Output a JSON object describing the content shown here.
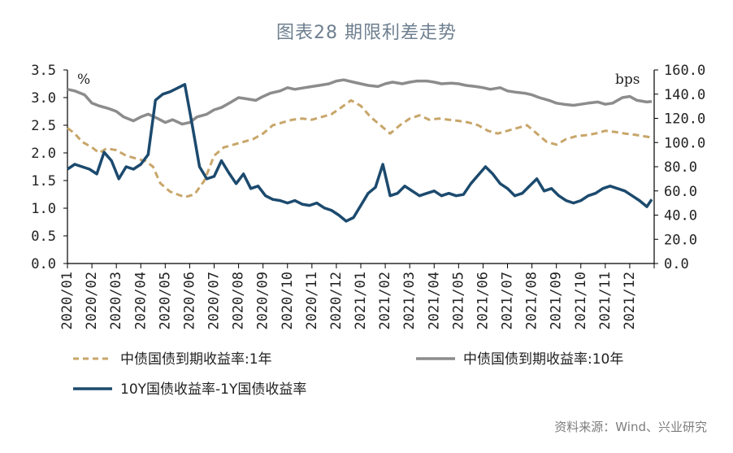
{
  "title": "图表28 期限利差走势",
  "source": "资料来源：Wind、兴业研究",
  "colors": {
    "one_year": "#c8a66a",
    "ten_year": "#8c8c8c",
    "spread": "#1c4a6e"
  },
  "chart_data": {
    "type": "line",
    "x_categories": [
      "2020/01",
      "2020/02",
      "2020/03",
      "2020/04",
      "2020/05",
      "2020/06",
      "2020/07",
      "2020/08",
      "2020/09",
      "2020/10",
      "2020/11",
      "2020/12",
      "2021/01",
      "2021/02",
      "2021/03",
      "2021/04",
      "2021/05",
      "2021/06",
      "2021/07",
      "2021/08",
      "2021/09",
      "2021/10",
      "2021/11",
      "2021/12"
    ],
    "left_axis": {
      "unit": "%",
      "ylim": [
        0,
        3.5
      ],
      "ticks": [
        "0.0",
        "0.5",
        "1.0",
        "1.5",
        "2.0",
        "2.5",
        "3.0",
        "3.5"
      ]
    },
    "right_axis": {
      "unit": "bps",
      "ylim": [
        0,
        160
      ],
      "ticks": [
        "0.0",
        "20.0",
        "40.0",
        "60.0",
        "80.0",
        "100.0",
        "120.0",
        "140.0",
        "160.0"
      ]
    },
    "grid": false,
    "legend_placement": "bottom",
    "series": [
      {
        "name": "中债国债到期收益率:1年",
        "axis": "left",
        "style": "dashed",
        "x": [
          0.0,
          0.3,
          0.6,
          1.0,
          1.3,
          1.6,
          2.0,
          2.4,
          2.8,
          3.2,
          3.5,
          3.8,
          4.2,
          4.5,
          4.8,
          5.2,
          5.6,
          6.0,
          6.4,
          6.8,
          7.2,
          7.6,
          8.0,
          8.4,
          8.8,
          9.2,
          9.6,
          10.0,
          10.4,
          10.8,
          11.2,
          11.6,
          12.0,
          12.4,
          12.8,
          13.2,
          13.6,
          14.0,
          14.4,
          14.8,
          15.2,
          15.6,
          16.0,
          16.4,
          16.8,
          17.2,
          17.6,
          18.0,
          18.4,
          18.8,
          19.2,
          19.6,
          20.0,
          20.4,
          20.8,
          21.2,
          21.6,
          22.0,
          22.4,
          22.8,
          23.2,
          23.6,
          23.9
        ],
        "values": [
          2.45,
          2.35,
          2.2,
          2.1,
          2.0,
          2.08,
          2.05,
          1.95,
          1.9,
          1.85,
          1.75,
          1.45,
          1.3,
          1.25,
          1.2,
          1.25,
          1.5,
          1.95,
          2.1,
          2.15,
          2.2,
          2.25,
          2.35,
          2.5,
          2.55,
          2.6,
          2.62,
          2.6,
          2.65,
          2.7,
          2.82,
          2.95,
          2.85,
          2.65,
          2.5,
          2.35,
          2.5,
          2.62,
          2.68,
          2.6,
          2.62,
          2.6,
          2.58,
          2.55,
          2.5,
          2.4,
          2.35,
          2.4,
          2.45,
          2.5,
          2.35,
          2.2,
          2.15,
          2.25,
          2.3,
          2.32,
          2.35,
          2.4,
          2.38,
          2.35,
          2.33,
          2.3,
          2.28
        ]
      },
      {
        "name": "中债国债到期收益率:10年",
        "axis": "left",
        "style": "solid",
        "x": [
          0.0,
          0.3,
          0.7,
          1.0,
          1.3,
          1.7,
          2.0,
          2.3,
          2.7,
          3.0,
          3.3,
          3.7,
          4.0,
          4.3,
          4.7,
          5.0,
          5.3,
          5.7,
          6.0,
          6.3,
          6.7,
          7.0,
          7.3,
          7.7,
          8.0,
          8.3,
          8.7,
          9.0,
          9.3,
          9.7,
          10.0,
          10.3,
          10.7,
          11.0,
          11.3,
          11.7,
          12.0,
          12.3,
          12.7,
          13.0,
          13.3,
          13.7,
          14.0,
          14.3,
          14.7,
          15.0,
          15.3,
          15.7,
          16.0,
          16.3,
          16.7,
          17.0,
          17.3,
          17.7,
          18.0,
          18.3,
          18.7,
          19.0,
          19.3,
          19.7,
          20.0,
          20.3,
          20.7,
          21.0,
          21.3,
          21.7,
          22.0,
          22.3,
          22.7,
          23.0,
          23.3,
          23.7,
          23.9
        ],
        "values": [
          3.15,
          3.12,
          3.05,
          2.9,
          2.85,
          2.8,
          2.75,
          2.65,
          2.58,
          2.65,
          2.7,
          2.62,
          2.55,
          2.6,
          2.52,
          2.55,
          2.65,
          2.7,
          2.78,
          2.82,
          2.92,
          3.0,
          2.98,
          2.95,
          3.02,
          3.08,
          3.12,
          3.18,
          3.15,
          3.18,
          3.2,
          3.22,
          3.25,
          3.3,
          3.32,
          3.28,
          3.25,
          3.22,
          3.2,
          3.25,
          3.28,
          3.25,
          3.28,
          3.3,
          3.3,
          3.28,
          3.25,
          3.26,
          3.25,
          3.22,
          3.2,
          3.18,
          3.15,
          3.18,
          3.12,
          3.1,
          3.08,
          3.05,
          3.0,
          2.95,
          2.9,
          2.88,
          2.86,
          2.88,
          2.9,
          2.92,
          2.88,
          2.9,
          3.0,
          3.02,
          2.95,
          2.92,
          2.93
        ]
      },
      {
        "name": "10Y国债收益率-1Y国债收益率",
        "axis": "right",
        "style": "solid",
        "x": [
          0.0,
          0.3,
          0.6,
          0.9,
          1.2,
          1.5,
          1.8,
          2.1,
          2.4,
          2.7,
          3.0,
          3.3,
          3.6,
          3.9,
          4.2,
          4.5,
          4.8,
          5.1,
          5.4,
          5.7,
          6.0,
          6.3,
          6.6,
          6.9,
          7.2,
          7.5,
          7.8,
          8.1,
          8.4,
          8.7,
          9.0,
          9.3,
          9.6,
          9.9,
          10.2,
          10.5,
          10.8,
          11.1,
          11.4,
          11.7,
          12.0,
          12.3,
          12.6,
          12.9,
          13.2,
          13.5,
          13.8,
          14.1,
          14.4,
          14.7,
          15.0,
          15.3,
          15.6,
          15.9,
          16.2,
          16.5,
          16.8,
          17.1,
          17.4,
          17.7,
          18.0,
          18.3,
          18.6,
          18.9,
          19.2,
          19.5,
          19.8,
          20.1,
          20.4,
          20.7,
          21.0,
          21.3,
          21.6,
          21.9,
          22.2,
          22.5,
          22.8,
          23.1,
          23.4,
          23.7,
          23.9
        ],
        "values": [
          78,
          82,
          80,
          78,
          74,
          92,
          85,
          70,
          80,
          78,
          82,
          90,
          135,
          140,
          142,
          145,
          148,
          115,
          80,
          70,
          72,
          85,
          75,
          66,
          74,
          62,
          64,
          56,
          53,
          52,
          50,
          52,
          49,
          48,
          50,
          46,
          44,
          40,
          35,
          38,
          48,
          58,
          63,
          82,
          56,
          58,
          64,
          60,
          56,
          58,
          60,
          56,
          58,
          56,
          57,
          66,
          73,
          80,
          74,
          66,
          62,
          56,
          58,
          64,
          70,
          60,
          62,
          56,
          52,
          50,
          52,
          56,
          58,
          62,
          64,
          62,
          60,
          56,
          52,
          47,
          53
        ]
      }
    ]
  }
}
